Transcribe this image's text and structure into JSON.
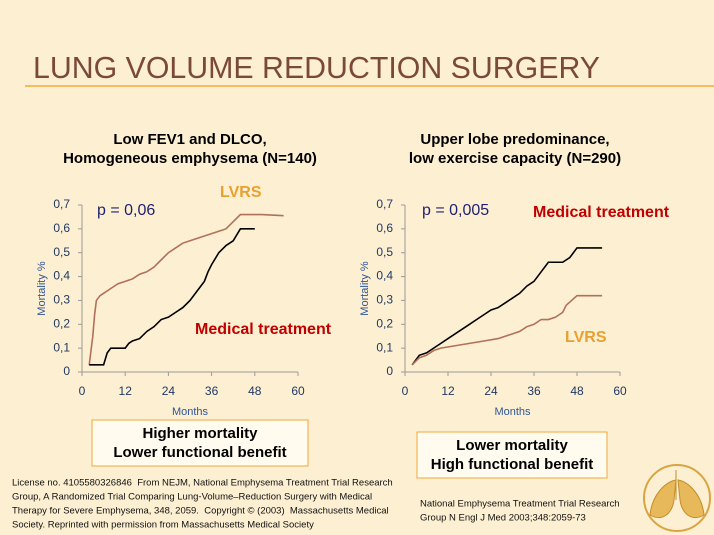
{
  "slide_title": "LUNG VOLUME REDUCTION SURGERY",
  "chart_data": [
    {
      "type": "line",
      "title": [
        "Low FEV1 and DLCO,",
        "Homogeneous emphysema (N=140)"
      ],
      "x_label": "Months",
      "y_label": "Mortality %",
      "annotation": "p = 0,06",
      "xlim": [
        0,
        60
      ],
      "xticks": [
        0,
        12,
        24,
        36,
        48,
        60
      ],
      "ylim": [
        0,
        0.7
      ],
      "yticks": [
        0,
        {
          "value": 0.1,
          "label": "0,1"
        },
        {
          "value": 0.2,
          "label": "0,2"
        },
        {
          "value": 0.3,
          "label": "0,3"
        },
        {
          "value": 0.4,
          "label": "0,4"
        },
        {
          "value": 0.5,
          "label": "0,5"
        },
        {
          "value": 0.6,
          "label": "0,6"
        },
        {
          "value": 0.7,
          "label": "0,7"
        }
      ],
      "grid": false,
      "series": [
        {
          "name": "LVRS",
          "color": "#b0705a",
          "label_color": "#e8a030",
          "x": [
            2,
            3,
            3.5,
            4,
            5,
            6,
            8,
            10,
            12,
            14,
            16,
            18,
            20,
            22,
            24,
            26,
            28,
            30,
            32,
            34,
            36,
            38,
            40,
            42,
            44,
            50,
            56
          ],
          "values": [
            0.03,
            0.15,
            0.24,
            0.3,
            0.32,
            0.33,
            0.35,
            0.37,
            0.38,
            0.39,
            0.41,
            0.42,
            0.44,
            0.47,
            0.5,
            0.52,
            0.54,
            0.55,
            0.56,
            0.57,
            0.58,
            0.59,
            0.6,
            0.63,
            0.66,
            0.66,
            0.655
          ]
        },
        {
          "name": "Medical treatment",
          "color": "#000000",
          "label_color": "#c00000",
          "x": [
            2,
            6,
            7,
            8,
            12,
            13,
            14,
            16,
            18,
            20,
            22,
            24,
            26,
            28,
            30,
            32,
            34,
            35,
            36,
            38,
            40,
            42,
            44,
            48
          ],
          "values": [
            0.03,
            0.03,
            0.08,
            0.1,
            0.1,
            0.12,
            0.13,
            0.14,
            0.17,
            0.19,
            0.22,
            0.23,
            0.25,
            0.27,
            0.3,
            0.34,
            0.38,
            0.42,
            0.45,
            0.5,
            0.53,
            0.55,
            0.6,
            0.6
          ]
        }
      ]
    },
    {
      "type": "line",
      "title": [
        "Upper lobe predominance,",
        "low exercise capacity (N=290)"
      ],
      "x_label": "Months",
      "y_label": "Mortality %",
      "annotation": "p = 0,005",
      "xlim": [
        0,
        60
      ],
      "xticks": [
        0,
        12,
        24,
        36,
        48,
        60
      ],
      "ylim": [
        0,
        0.7
      ],
      "yticks": [
        0,
        {
          "value": 0.1,
          "label": "0,1"
        },
        {
          "value": 0.2,
          "label": "0,2"
        },
        {
          "value": 0.3,
          "label": "0,3"
        },
        {
          "value": 0.4,
          "label": "0,4"
        },
        {
          "value": 0.5,
          "label": "0,5"
        },
        {
          "value": 0.6,
          "label": "0,6"
        },
        {
          "value": 0.7,
          "label": "0,7"
        }
      ],
      "grid": false,
      "series": [
        {
          "name": "Medical treatment",
          "color": "#000000",
          "label_color": "#c00000",
          "x": [
            2,
            4,
            6,
            8,
            10,
            12,
            14,
            16,
            18,
            20,
            22,
            24,
            26,
            28,
            30,
            32,
            34,
            36,
            38,
            40,
            44,
            46,
            48,
            55
          ],
          "values": [
            0.03,
            0.07,
            0.08,
            0.1,
            0.12,
            0.14,
            0.16,
            0.18,
            0.2,
            0.22,
            0.24,
            0.26,
            0.27,
            0.29,
            0.31,
            0.33,
            0.36,
            0.38,
            0.42,
            0.46,
            0.46,
            0.48,
            0.52,
            0.52
          ]
        },
        {
          "name": "LVRS",
          "color": "#b0705a",
          "label_color": "#e8a030",
          "x": [
            2,
            4,
            6,
            8,
            10,
            14,
            18,
            22,
            26,
            30,
            32,
            34,
            36,
            38,
            40,
            42,
            44,
            45,
            48,
            55
          ],
          "values": [
            0.03,
            0.06,
            0.07,
            0.09,
            0.1,
            0.11,
            0.12,
            0.13,
            0.14,
            0.16,
            0.17,
            0.19,
            0.2,
            0.22,
            0.22,
            0.23,
            0.25,
            0.28,
            0.32,
            0.32
          ]
        }
      ]
    }
  ],
  "boxes": [
    [
      "Higher mortality",
      "Lower functional benefit"
    ],
    [
      "Lower mortality",
      "High functional benefit"
    ]
  ],
  "license": [
    "License no. 4105580326846  From NEJM, National Emphysema Treatment Trial Research",
    "Group, A Randomized Trial Comparing Lung-Volume–Reduction Surgery with Medical",
    "Therapy for Severe Emphysema, 348, 2059.  Copyright © (2003)  Massachusetts Medical",
    "Society. Reprinted with permission from Massachusetts Medical Society"
  ],
  "citation": [
    "National Emphysema Treatment Trial Research",
    "Group N Engl J Med 2003;348:2059-73"
  ]
}
